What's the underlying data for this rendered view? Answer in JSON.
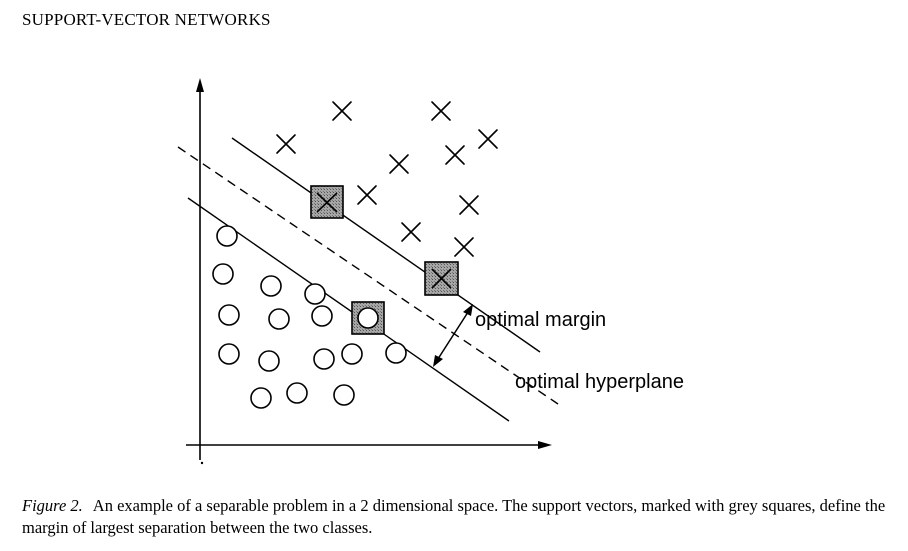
{
  "header": {
    "running_title": "SUPPORT-VECTOR NETWORKS"
  },
  "figure": {
    "label_margin": "optimal margin",
    "label_hyperplane": "optimal hyperplane",
    "colors": {
      "ink": "#000000",
      "support_vector_fill": "#999999"
    }
  },
  "caption": {
    "number": "Figure 2.",
    "text": "An example of a separable problem in a 2 dimensional space. The support vectors, marked with grey squares, define the margin of largest separation between the two classes."
  }
}
